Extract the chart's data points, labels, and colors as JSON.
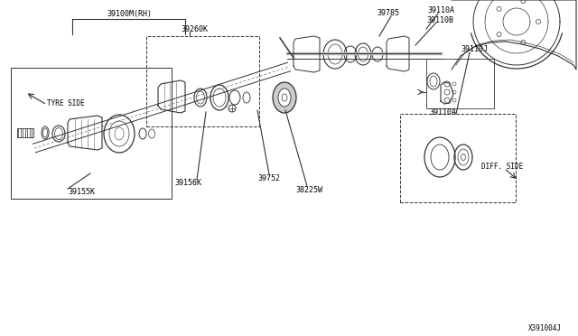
{
  "bg_color": "#ffffff",
  "line_color": "#333333",
  "labels": {
    "part_number": "X391004J",
    "39100M_RH": "39100M(RH)",
    "39260K": "39260K",
    "39155K": "39155K",
    "39156K": "39156K",
    "39752": "39752",
    "38225W": "38225W",
    "39785": "39785",
    "39110A_top": "39110A",
    "39110B": "39110B",
    "39110A_bot": "39110A",
    "39110J": "39110J",
    "TYRE_SIDE": "TYRE SIDE",
    "DIFF_SIDE": "DIFF. SIDE"
  }
}
